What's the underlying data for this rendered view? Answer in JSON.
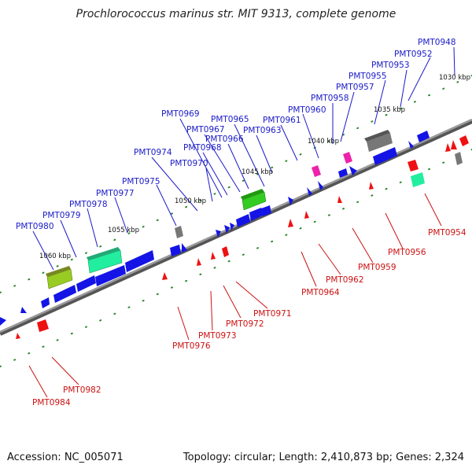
{
  "title": "Prochlorococcus marinus str. MIT 9313, complete genome",
  "footer": {
    "accession": "Accession: NC_005071",
    "summary": "Topology: circular; Length: 2,410,873 bp; Genes: 2,324"
  },
  "colors": {
    "forward_label": "#1a1ac8",
    "reverse_label": "#cc1111",
    "backbone": "#7a7a7a",
    "blue_gene": "#1414e6",
    "red_gene": "#ee1111",
    "cyan_gene": "#22eea0",
    "green_gene": "#33cc22",
    "olive_gene": "#99cc22",
    "grey_gene": "#777777",
    "pink_gene": "#ee22aa",
    "tick_green": "#2a8a2a"
  },
  "kbp_labels": [
    "1030 kbp",
    "1035 kbp",
    "1040 kbp",
    "1045 kbp",
    "1050 kbp",
    "1055 kbp",
    "1060 kbp"
  ],
  "top_labels": [
    "PMT0948",
    "PMT0952",
    "PMT0953",
    "PMT0955",
    "PMT0957",
    "PMT0958",
    "PMT0960",
    "PMT0961",
    "PMT0963",
    "PMT0965",
    "PMT0966",
    "PMT0967",
    "PMT0968",
    "PMT0969",
    "PMT0970",
    "PMT0974",
    "PMT0975",
    "PMT0977",
    "PMT0978",
    "PMT0979",
    "PMT0980"
  ],
  "bottom_labels": [
    "PMT0954",
    "PMT0956",
    "PMT0959",
    "PMT0962",
    "PMT0964",
    "PMT0971",
    "PMT0972",
    "PMT0973",
    "PMT0976",
    "PMT0982",
    "PMT0984"
  ]
}
